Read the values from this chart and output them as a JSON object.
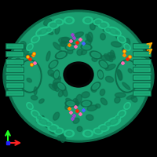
{
  "background_color": "#000000",
  "protein_color_main": "#1a9e70",
  "protein_color_light": "#22c48a",
  "protein_color_dark": "#0d6b4a",
  "protein_color_shadow": "#0a5038",
  "ligand_pink": "#ff69b4",
  "ligand_purple": "#9944cc",
  "ligand_red": "#ff2200",
  "ligand_orange": "#ff8800",
  "ligand_blue": "#4466ff",
  "axis_x_color": "#ff2222",
  "axis_y_color": "#22ff22",
  "axis_z_color": "#2222ff",
  "arrow_right_color": "#ffaa00",
  "figure_size": [
    2.0,
    2.0
  ],
  "dpi": 100
}
